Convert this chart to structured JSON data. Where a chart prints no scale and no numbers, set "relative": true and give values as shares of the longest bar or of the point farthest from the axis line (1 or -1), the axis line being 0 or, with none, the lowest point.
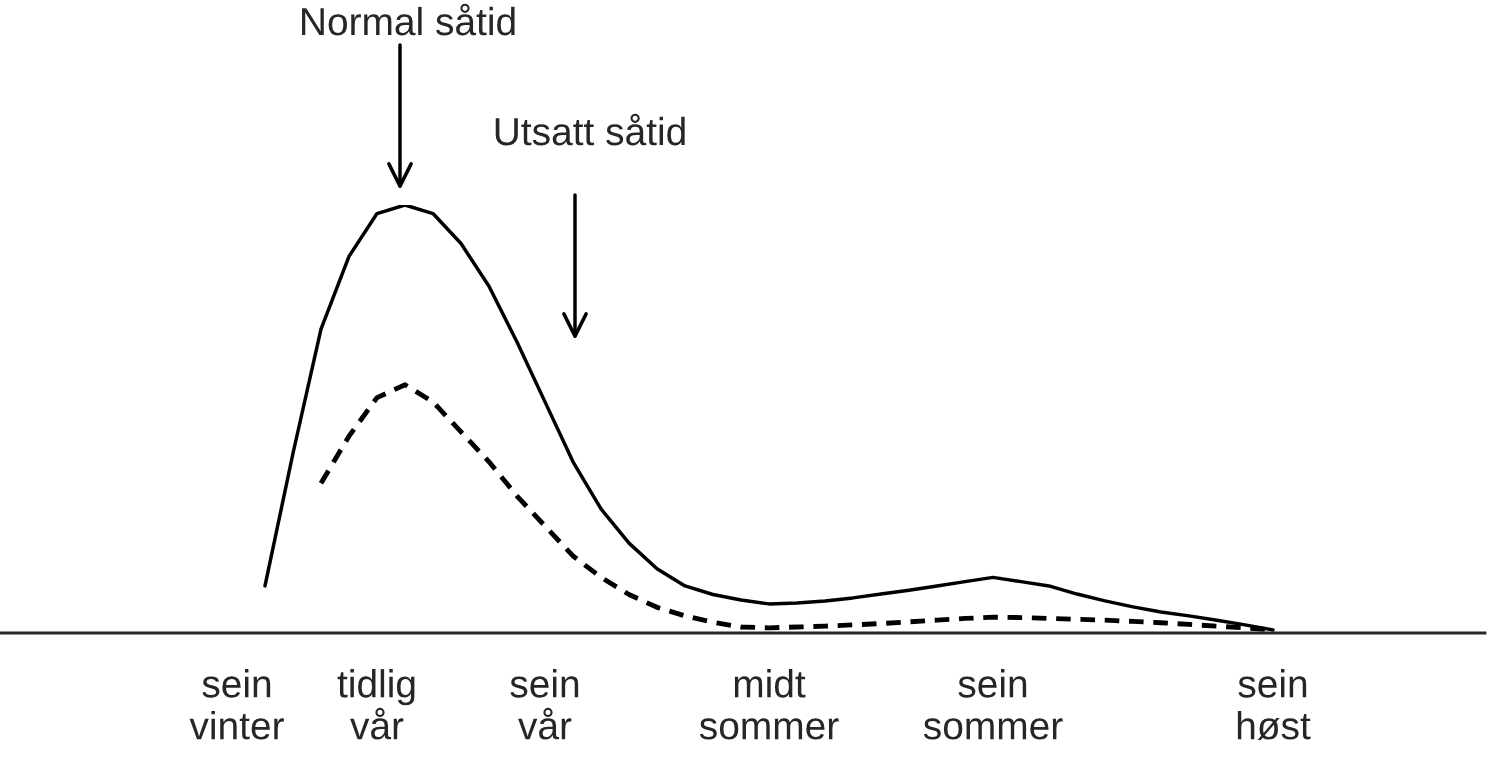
{
  "chart_data": {
    "type": "line",
    "relative": true,
    "categories": [
      "sein\nvinter",
      null,
      null,
      null,
      null,
      "tidlig\nvår",
      null,
      null,
      null,
      null,
      null,
      "sein\nvår",
      null,
      null,
      null,
      null,
      null,
      null,
      null,
      "midt\nsommer",
      null,
      null,
      null,
      null,
      null,
      null,
      null,
      "sein\nsommer",
      null,
      null,
      null,
      null,
      null,
      null,
      null,
      null,
      null,
      "sein\nhøst"
    ],
    "series": [
      {
        "color": "#000000",
        "line_style": "solid",
        "values": [
          null,
          0.11,
          0.42,
          0.71,
          0.88,
          0.98,
          1.0,
          0.98,
          0.91,
          0.81,
          0.68,
          0.54,
          0.4,
          0.29,
          0.21,
          0.15,
          0.11,
          0.09,
          0.077,
          0.068,
          0.07,
          0.075,
          0.082,
          0.091,
          0.1,
          0.11,
          0.12,
          0.13,
          0.12,
          0.11,
          0.091,
          0.075,
          0.061,
          0.049,
          0.04,
          0.03,
          0.019,
          0.007
        ]
      },
      {
        "color": "#000000",
        "line_style": "dashed",
        "values": [
          null,
          null,
          null,
          0.35,
          0.46,
          0.55,
          0.58,
          0.54,
          0.47,
          0.4,
          0.32,
          0.25,
          0.18,
          0.13,
          0.09,
          0.06,
          0.04,
          0.025,
          0.014,
          0.012,
          0.014,
          0.016,
          0.019,
          0.022,
          0.026,
          0.03,
          0.034,
          0.037,
          0.036,
          0.034,
          0.032,
          0.03,
          0.027,
          0.024,
          0.02,
          0.016,
          0.012,
          0.007
        ]
      }
    ],
    "annotations": [
      "Normal såtid",
      "Utsatt såtid"
    ]
  }
}
